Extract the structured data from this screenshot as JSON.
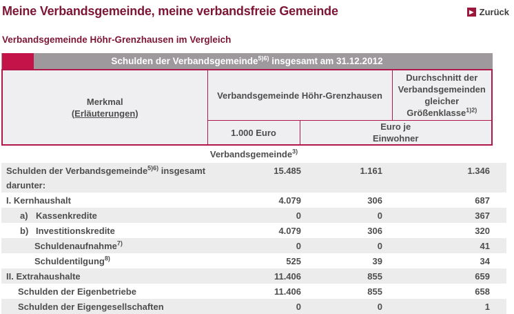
{
  "page": {
    "title": "Meine Verbandsgemeinde, meine verbandsfreie Gemeinde",
    "back_label": "Zurück",
    "back_icon": "play-arrow-icon",
    "subtitle": "Verbandsgemeinde Höhr-Grenzhausen im Vergleich"
  },
  "table": {
    "band": {
      "pre": "Schulden der Verbandsgemeinde",
      "sup": "5)6)",
      "post": " insgesamt am 31.12.2012"
    },
    "header": {
      "merkmal": "Merkmal",
      "merkmal_link": "(Erläuterungen)",
      "vg": "Verbandsgemeinde Höhr-Grenzhausen",
      "avg_pre": "Durchschnitt der Verbandsgemeinden gleicher Größenklasse",
      "avg_sup": "1)2)",
      "unit_thousand": "1.000 Euro",
      "unit_per_capita": "Euro je Einwohner"
    },
    "section": {
      "pre": "Verbandsgemeinde",
      "sup": "3)"
    },
    "rows": [
      {
        "pre": "Schulden der Verbandsgemeinde",
        "sup": "5)6)",
        "post": " insgesamt",
        "values": [
          "15.485",
          "1.161",
          "1.346"
        ],
        "shade": true,
        "indent": 0
      },
      {
        "pre": "darunter:",
        "values": [
          "",
          "",
          ""
        ],
        "shade": true,
        "indent": 0,
        "join": true
      },
      {
        "pre": "I. Kernhaushalt",
        "values": [
          "4.079",
          "306",
          "687"
        ],
        "shade": false,
        "indent": 0
      },
      {
        "marker": "a)",
        "pre": "Kassenkredite",
        "values": [
          "0",
          "0",
          "367"
        ],
        "shade": true
      },
      {
        "marker": "b)",
        "pre": "Investitionskredite",
        "values": [
          "4.079",
          "306",
          "320"
        ],
        "shade": false
      },
      {
        "pre": "Schuldenaufnahme",
        "sup": "7)",
        "values": [
          "0",
          "0",
          "41"
        ],
        "shade": true,
        "indent": 2
      },
      {
        "pre": "Schuldentilgung",
        "sup": "8)",
        "values": [
          "525",
          "39",
          "34"
        ],
        "shade": false,
        "indent": 2
      },
      {
        "pre": "II. Extrahaushalte",
        "values": [
          "11.406",
          "855",
          "659"
        ],
        "shade": true,
        "indent": 0
      },
      {
        "pre": "Schulden der Eigenbetriebe",
        "values": [
          "11.406",
          "855",
          "658"
        ],
        "shade": false,
        "indent": 1
      },
      {
        "pre": "Schulden der Eigengesellschaften",
        "values": [
          "0",
          "0",
          "1"
        ],
        "shade": true,
        "indent": 1
      }
    ]
  },
  "colors": {
    "title_red": "#7d1535",
    "accent_crimson": "#c41349",
    "border_crimson": "#b01748",
    "band_gray": "#9d999d",
    "header_cell_bg": "#efeef0",
    "row_stripe": "#ececec",
    "text_gray": "#4d4d4d"
  }
}
